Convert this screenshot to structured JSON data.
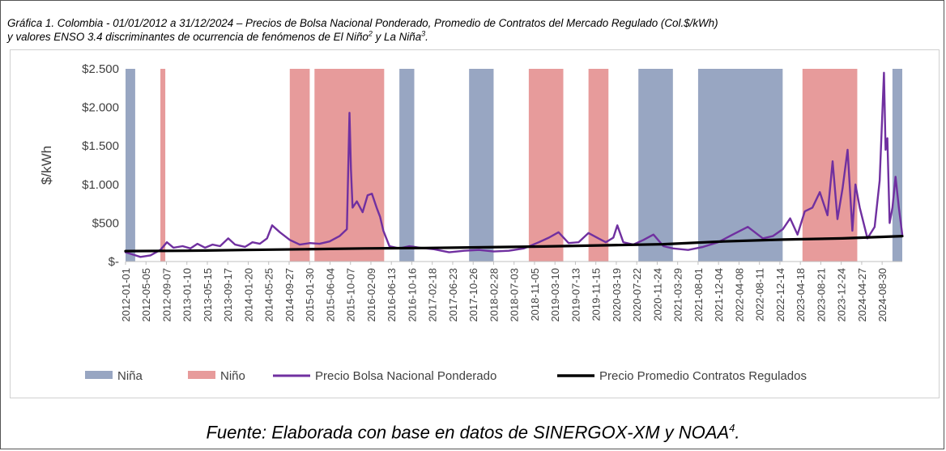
{
  "title": {
    "line1": "Gráfica 1. Colombia - 01/01/2012 a 31/12/2024 – Precios de Bolsa Nacional Ponderado, Promedio de Contratos del Mercado Regulado (Col.$/kWh)",
    "line2_pre": "y valores ENSO 3.4 discriminantes de ocurrencia de fenómenos de El Niño",
    "sup1": "2",
    "line2_mid": " y La Niña",
    "sup2": "3",
    "line2_post": "."
  },
  "caption": {
    "text": "Fuente: Elaborada con base en datos de SINERGOX-XM y NOAA",
    "sup": "4",
    "end": "."
  },
  "chart_data": {
    "type": "line",
    "ylabel": "$/kWh",
    "ylim": [
      0,
      2500
    ],
    "yticks": [
      0,
      500,
      1000,
      1500,
      2000,
      2500
    ],
    "ytick_labels": [
      "$-",
      "$500",
      "$1.000",
      "$1.500",
      "$2.000",
      "$2.500"
    ],
    "xlim": [
      "2012-01-01",
      "2024-12-31"
    ],
    "xtick_labels": [
      "2012-01-01",
      "2012-05-05",
      "2012-09-07",
      "2013-01-10",
      "2013-05-15",
      "2013-09-17",
      "2014-01-20",
      "2014-05-25",
      "2014-09-27",
      "2015-01-30",
      "2015-06-04",
      "2015-10-07",
      "2016-02-09",
      "2016-06-13",
      "2016-10-16",
      "2017-02-18",
      "2017-06-23",
      "2017-10-26",
      "2018-02-28",
      "2018-07-03",
      "2018-11-05",
      "2019-03-10",
      "2019-07-13",
      "2019-11-15",
      "2020-03-19",
      "2020-07-22",
      "2020-11-24",
      "2021-03-29",
      "2021-08-01",
      "2021-12-04",
      "2022-04-08",
      "2022-08-11",
      "2022-12-14",
      "2023-04-18",
      "2023-08-21",
      "2023-12-24",
      "2024-04-27",
      "2024-08-30"
    ],
    "grid": false,
    "legend_position": "bottom",
    "colors": {
      "nina": "#98a6c2",
      "nino": "#e79b9b",
      "bolsa": "#7030a0",
      "contratos": "#000000"
    },
    "legend": [
      {
        "key": "nina",
        "label": "Niña",
        "kind": "swatch"
      },
      {
        "key": "nino",
        "label": "Niño",
        "kind": "swatch"
      },
      {
        "key": "bolsa",
        "label": "Precio Bolsa Nacional Ponderado",
        "kind": "line"
      },
      {
        "key": "contratos",
        "label": "Precio Promedio Contratos Regulados",
        "kind": "line"
      }
    ],
    "enso_periods": [
      {
        "type": "nina",
        "start": "2012-01-01",
        "end": "2012-02-29"
      },
      {
        "type": "nino",
        "start": "2012-08-01",
        "end": "2012-08-31"
      },
      {
        "type": "nino",
        "start": "2014-10-01",
        "end": "2015-01-31"
      },
      {
        "type": "nino",
        "start": "2015-03-01",
        "end": "2016-04-30"
      },
      {
        "type": "nina",
        "start": "2016-08-01",
        "end": "2016-10-31"
      },
      {
        "type": "nina",
        "start": "2017-10-01",
        "end": "2018-02-28"
      },
      {
        "type": "nino",
        "start": "2018-10-01",
        "end": "2019-04-30"
      },
      {
        "type": "nino",
        "start": "2019-10-01",
        "end": "2020-01-31"
      },
      {
        "type": "nina",
        "start": "2020-08-01",
        "end": "2021-02-28"
      },
      {
        "type": "nina",
        "start": "2021-08-01",
        "end": "2022-12-31"
      },
      {
        "type": "nino",
        "start": "2023-05-01",
        "end": "2024-03-31"
      },
      {
        "type": "nina",
        "start": "2024-11-01",
        "end": "2024-12-31"
      }
    ],
    "series": [
      {
        "name": "Precio Bolsa Nacional Ponderado",
        "key": "bolsa",
        "x": [
          "2012-01-01",
          "2012-02-15",
          "2012-04-01",
          "2012-06-01",
          "2012-08-01",
          "2012-09-10",
          "2012-10-20",
          "2012-12-15",
          "2013-02-01",
          "2013-03-15",
          "2013-05-01",
          "2013-06-15",
          "2013-08-01",
          "2013-09-20",
          "2013-11-01",
          "2014-01-01",
          "2014-02-15",
          "2014-04-01",
          "2014-05-15",
          "2014-06-15",
          "2014-08-01",
          "2014-10-01",
          "2014-12-01",
          "2015-02-01",
          "2015-04-01",
          "2015-06-01",
          "2015-08-01",
          "2015-09-15",
          "2015-10-01",
          "2015-10-10",
          "2015-10-20",
          "2015-11-15",
          "2015-12-20",
          "2016-01-20",
          "2016-02-15",
          "2016-03-15",
          "2016-04-05",
          "2016-04-25",
          "2016-06-01",
          "2016-08-01",
          "2016-10-01",
          "2016-12-01",
          "2017-03-01",
          "2017-06-01",
          "2017-09-01",
          "2017-12-01",
          "2018-03-01",
          "2018-06-01",
          "2018-09-01",
          "2018-12-01",
          "2019-02-01",
          "2019-04-01",
          "2019-06-01",
          "2019-08-01",
          "2019-10-01",
          "2019-12-01",
          "2020-01-15",
          "2020-03-01",
          "2020-03-25",
          "2020-05-01",
          "2020-07-01",
          "2020-09-01",
          "2020-11-01",
          "2021-01-01",
          "2021-03-01",
          "2021-06-01",
          "2021-09-01",
          "2021-12-01",
          "2022-03-01",
          "2022-06-01",
          "2022-09-01",
          "2022-11-01",
          "2023-01-01",
          "2023-02-15",
          "2023-04-01",
          "2023-05-15",
          "2023-07-01",
          "2023-08-15",
          "2023-10-01",
          "2023-11-01",
          "2023-12-01",
          "2024-01-01",
          "2024-02-01",
          "2024-03-01",
          "2024-03-20",
          "2024-04-15",
          "2024-06-01",
          "2024-07-15",
          "2024-08-15",
          "2024-09-10",
          "2024-09-20",
          "2024-10-01",
          "2024-10-15",
          "2024-11-01",
          "2024-11-20",
          "2024-12-10",
          "2024-12-31"
        ],
        "y": [
          120,
          90,
          60,
          80,
          150,
          250,
          180,
          200,
          170,
          230,
          180,
          220,
          200,
          300,
          220,
          190,
          250,
          230,
          300,
          470,
          380,
          280,
          220,
          240,
          230,
          260,
          330,
          420,
          1930,
          1200,
          700,
          780,
          640,
          860,
          880,
          700,
          580,
          400,
          200,
          170,
          200,
          180,
          160,
          120,
          140,
          150,
          130,
          140,
          170,
          250,
          310,
          380,
          240,
          250,
          370,
          300,
          250,
          310,
          470,
          250,
          220,
          280,
          350,
          200,
          170,
          150,
          190,
          250,
          350,
          450,
          300,
          330,
          420,
          560,
          350,
          650,
          700,
          900,
          600,
          1300,
          550,
          950,
          1450,
          400,
          1000,
          700,
          300,
          450,
          1050,
          2450,
          1450,
          1600,
          500,
          700,
          1100,
          700,
          350
        ]
      },
      {
        "name": "Precio Promedio Contratos Regulados",
        "key": "contratos",
        "x": [
          "2012-01-01",
          "2013-01-01",
          "2014-01-01",
          "2015-01-01",
          "2016-01-01",
          "2017-01-01",
          "2018-01-01",
          "2019-01-01",
          "2020-01-01",
          "2021-01-01",
          "2022-01-01",
          "2023-01-01",
          "2024-01-01",
          "2024-12-31"
        ],
        "y": [
          135,
          140,
          150,
          160,
          170,
          175,
          185,
          195,
          210,
          225,
          260,
          285,
          300,
          330
        ]
      }
    ]
  }
}
